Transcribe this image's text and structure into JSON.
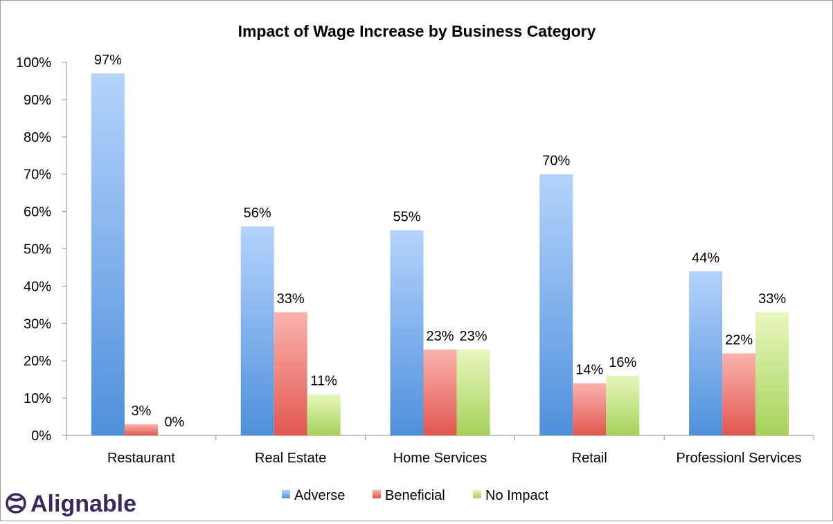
{
  "chart_data": {
    "type": "bar",
    "title": "Impact of Wage Increase by Business Category",
    "categories": [
      "Restaurant",
      "Real Estate",
      "Home Services",
      "Retail",
      "Professionl Services"
    ],
    "series": [
      {
        "name": "Adverse",
        "values": [
          97,
          56,
          55,
          70,
          44
        ],
        "labels": [
          "97%",
          "56%",
          "55%",
          "70%",
          "44%"
        ],
        "color": "#7eaef0"
      },
      {
        "name": "Beneficial",
        "values": [
          3,
          33,
          23,
          14,
          22
        ],
        "labels": [
          "3%",
          "33%",
          "23%",
          "14%",
          "22%"
        ],
        "color": "#f0807c"
      },
      {
        "name": "No Impact",
        "values": [
          0,
          11,
          23,
          16,
          33
        ],
        "labels": [
          "0%",
          "11%",
          "23%",
          "16%",
          "33%"
        ],
        "color": "#c8e58a"
      }
    ],
    "ylim": [
      0,
      100
    ],
    "yticks": [
      "0%",
      "10%",
      "20%",
      "30%",
      "40%",
      "50%",
      "60%",
      "70%",
      "80%",
      "90%",
      "100%"
    ],
    "grid": false,
    "legend_position": "bottom"
  },
  "brand": {
    "name": "Alignable",
    "logo_icon": "alignable-logo-icon",
    "color": "#3a2a5c"
  }
}
